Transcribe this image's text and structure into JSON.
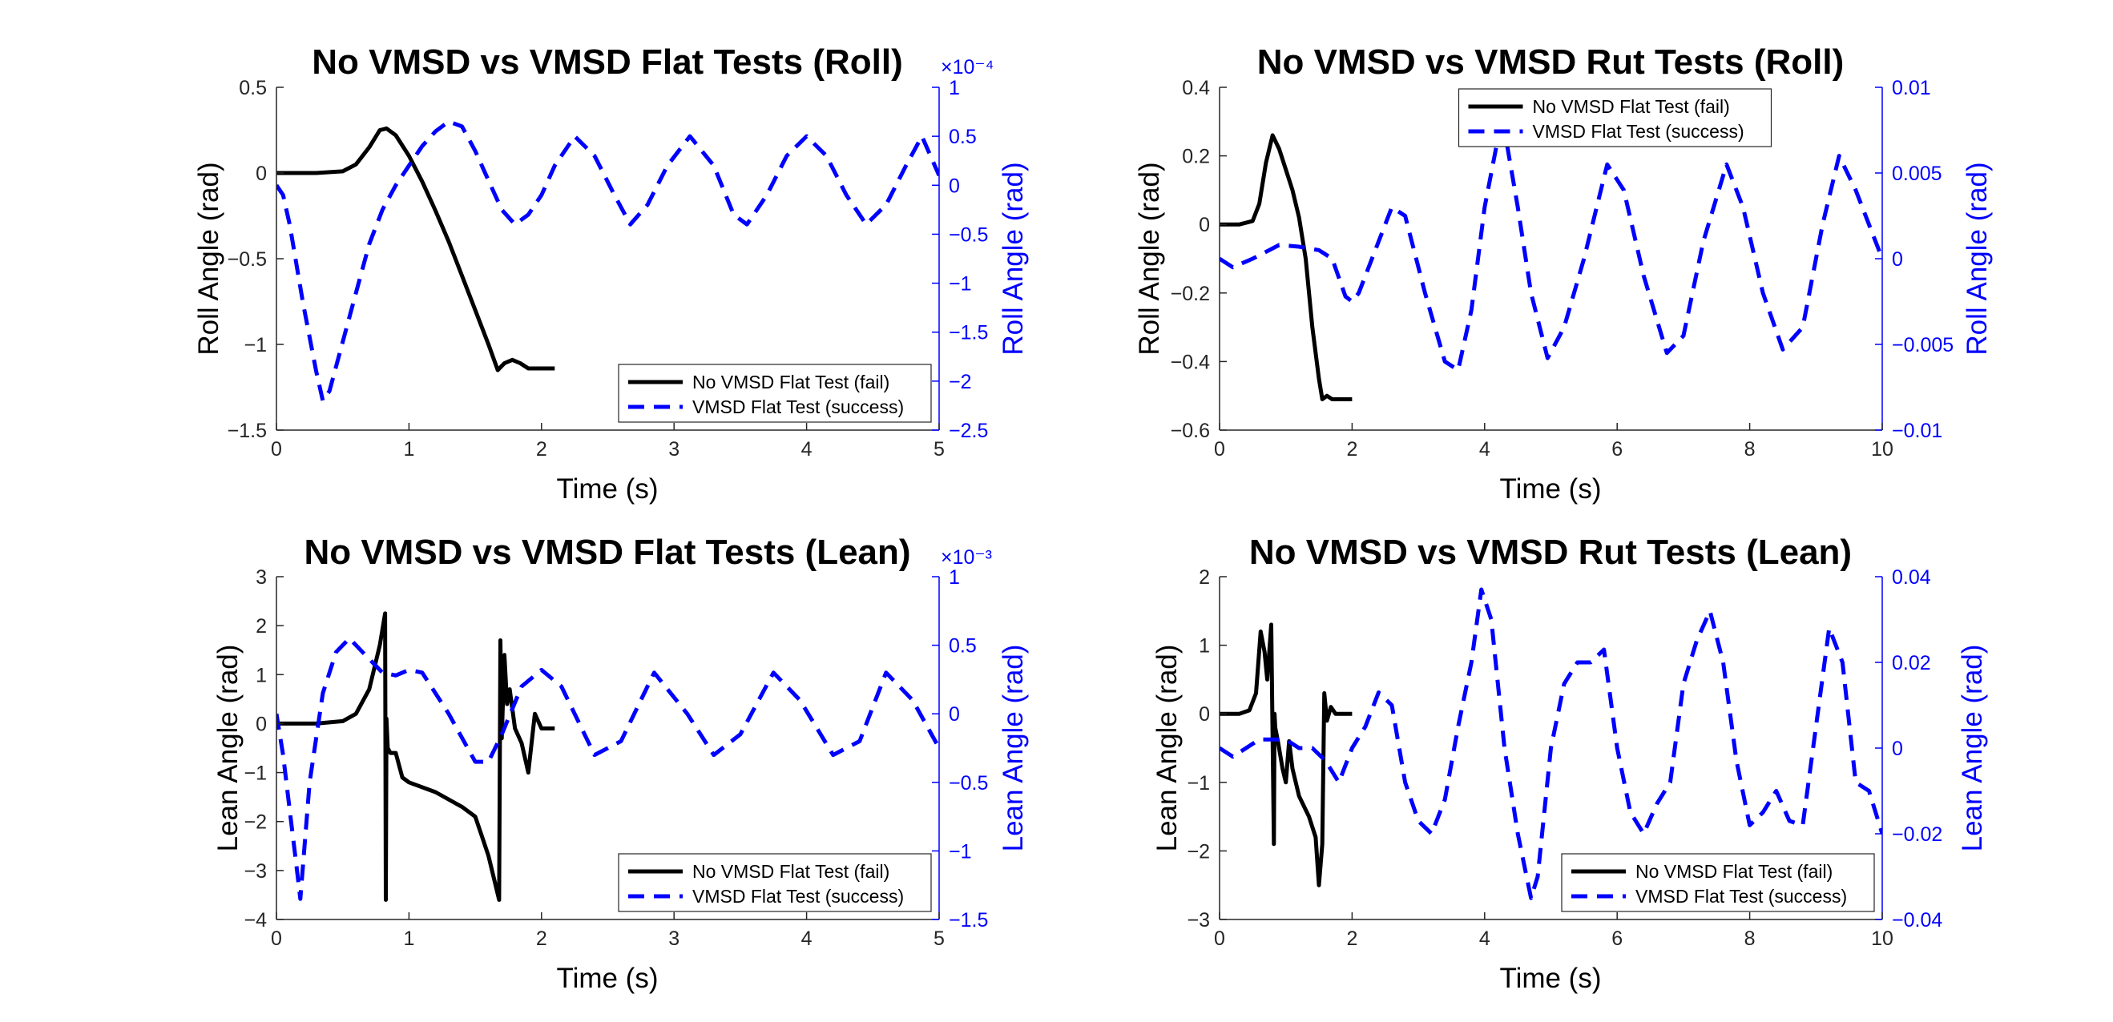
{
  "colors": {
    "left_axis": "#000000",
    "right_axis": "#0000ff",
    "series_fail": "#000000",
    "series_success": "#0000ff"
  },
  "chart_data": [
    {
      "type": "line",
      "title": "No VMSD vs VMSD Flat Tests (Roll)",
      "xlabel": "Time (s)",
      "ylabel_left": "Roll Angle (rad)",
      "ylabel_right": "Roll Angle (rad)",
      "xlim": [
        0,
        5
      ],
      "ylim_left": [
        -1.5,
        0.5
      ],
      "ylim_right": [
        -2.5,
        1
      ],
      "right_exponent": "×10⁻⁴",
      "xticks": [
        0,
        1,
        2,
        3,
        4,
        5
      ],
      "yticks_left": [
        -1.5,
        -1,
        -0.5,
        0,
        0.5
      ],
      "yticks_right": [
        -2.5,
        -2,
        -1.5,
        -1,
        -0.5,
        0,
        0.5,
        1
      ],
      "legend_location": "bottom-right",
      "grid": false,
      "series": [
        {
          "name": "No VMSD Flat Test (fail)",
          "axis": "left",
          "style": "solid",
          "x": [
            0,
            0.3,
            0.5,
            0.6,
            0.7,
            0.78,
            0.83,
            0.9,
            1.0,
            1.1,
            1.2,
            1.3,
            1.4,
            1.5,
            1.6,
            1.67,
            1.72,
            1.78,
            1.84,
            1.9,
            2.0,
            2.1
          ],
          "y": [
            0,
            0,
            0.01,
            0.05,
            0.15,
            0.25,
            0.26,
            0.22,
            0.1,
            -0.05,
            -0.22,
            -0.4,
            -0.6,
            -0.8,
            -1.0,
            -1.15,
            -1.11,
            -1.09,
            -1.11,
            -1.14,
            -1.14,
            -1.14
          ]
        },
        {
          "name": "VMSD Flat Test (success)",
          "axis": "right",
          "style": "dashed",
          "x": [
            0,
            0.05,
            0.1,
            0.2,
            0.3,
            0.35,
            0.4,
            0.5,
            0.6,
            0.7,
            0.8,
            0.9,
            1.0,
            1.1,
            1.2,
            1.3,
            1.4,
            1.5,
            1.6,
            1.7,
            1.8,
            1.9,
            2.0,
            2.1,
            2.25,
            2.4,
            2.55,
            2.67,
            2.8,
            2.95,
            3.12,
            3.3,
            3.45,
            3.55,
            3.7,
            3.85,
            4.0,
            4.15,
            4.3,
            4.45,
            4.6,
            4.75,
            4.87,
            5.0
          ],
          "y": [
            0,
            -0.1,
            -0.4,
            -1.2,
            -1.9,
            -2.2,
            -2.1,
            -1.6,
            -1.1,
            -0.6,
            -0.25,
            0,
            0.2,
            0.4,
            0.55,
            0.65,
            0.6,
            0.35,
            0.05,
            -0.25,
            -0.4,
            -0.3,
            -0.1,
            0.2,
            0.5,
            0.3,
            -0.1,
            -0.4,
            -0.2,
            0.2,
            0.5,
            0.2,
            -0.3,
            -0.4,
            -0.1,
            0.3,
            0.5,
            0.3,
            -0.1,
            -0.4,
            -0.2,
            0.2,
            0.5,
            0.1
          ]
        }
      ]
    },
    {
      "type": "line",
      "title": "No VMSD vs VMSD Rut Tests (Roll)",
      "xlabel": "Time (s)",
      "ylabel_left": "Roll Angle (rad)",
      "ylabel_right": "Roll Angle (rad)",
      "xlim": [
        0,
        10
      ],
      "ylim_left": [
        -0.6,
        0.4
      ],
      "ylim_right": [
        -0.01,
        0.01
      ],
      "right_exponent": "",
      "xticks": [
        0,
        2,
        4,
        6,
        8,
        10
      ],
      "yticks_left": [
        -0.6,
        -0.4,
        -0.2,
        0,
        0.2,
        0.4
      ],
      "yticks_right": [
        -0.01,
        -0.005,
        0,
        0.005,
        0.01
      ],
      "legend_location": "top-center",
      "grid": false,
      "series": [
        {
          "name": "No VMSD Flat Test (fail)",
          "axis": "left",
          "style": "solid",
          "x": [
            0,
            0.3,
            0.5,
            0.6,
            0.7,
            0.8,
            0.9,
            1.0,
            1.1,
            1.2,
            1.3,
            1.4,
            1.5,
            1.55,
            1.62,
            1.7,
            1.8,
            2.0
          ],
          "y": [
            0,
            0,
            0.01,
            0.06,
            0.18,
            0.26,
            0.22,
            0.16,
            0.1,
            0.02,
            -0.1,
            -0.3,
            -0.45,
            -0.51,
            -0.5,
            -0.51,
            -0.51,
            -0.51
          ]
        },
        {
          "name": "VMSD Flat Test (success)",
          "axis": "right",
          "style": "dashed",
          "x": [
            0,
            0.2,
            0.5,
            0.9,
            1.2,
            1.5,
            1.7,
            1.9,
            2.0,
            2.1,
            2.3,
            2.6,
            2.8,
            3.1,
            3.4,
            3.6,
            3.8,
            4.0,
            4.2,
            4.3,
            4.5,
            4.7,
            4.95,
            5.2,
            5.5,
            5.85,
            6.1,
            6.4,
            6.75,
            7.0,
            7.3,
            7.65,
            7.9,
            8.2,
            8.5,
            8.8,
            9.1,
            9.35,
            9.6,
            10.0
          ],
          "y": [
            0,
            -0.0005,
            0,
            0.0008,
            0.0007,
            0.0005,
            0,
            -0.0022,
            -0.0025,
            -0.002,
            0,
            0.003,
            0.0025,
            -0.002,
            -0.006,
            -0.0065,
            -0.003,
            0.003,
            0.007,
            0.0075,
            0.003,
            -0.002,
            -0.0058,
            -0.004,
            0,
            0.0055,
            0.004,
            -0.001,
            -0.0055,
            -0.0045,
            0.001,
            0.0055,
            0.003,
            -0.002,
            -0.0053,
            -0.004,
            0.002,
            0.006,
            0.004,
            0
          ]
        }
      ]
    },
    {
      "type": "line",
      "title": "No VMSD vs VMSD Flat Tests (Lean)",
      "xlabel": "Time (s)",
      "ylabel_left": "Lean Angle (rad)",
      "ylabel_right": "Lean Angle (rad)",
      "xlim": [
        0,
        5
      ],
      "ylim_left": [
        -4,
        3
      ],
      "ylim_right": [
        -1.5,
        1
      ],
      "right_exponent": "×10⁻³",
      "xticks": [
        0,
        1,
        2,
        3,
        4,
        5
      ],
      "yticks_left": [
        -4,
        -3,
        -2,
        -1,
        0,
        1,
        2,
        3
      ],
      "yticks_right": [
        -1.5,
        -1,
        -0.5,
        0,
        0.5,
        1
      ],
      "legend_location": "bottom-right",
      "grid": false,
      "series": [
        {
          "name": "No VMSD Flat Test (fail)",
          "axis": "left",
          "style": "solid",
          "x": [
            0,
            0.3,
            0.5,
            0.6,
            0.7,
            0.78,
            0.82,
            0.825,
            0.83,
            0.84,
            0.86,
            0.9,
            0.95,
            1.0,
            1.2,
            1.4,
            1.5,
            1.55,
            1.6,
            1.68,
            1.69,
            1.7,
            1.72,
            1.74,
            1.76,
            1.8,
            1.85,
            1.9,
            1.95,
            2.0,
            2.1
          ],
          "y": [
            0,
            0,
            0.05,
            0.2,
            0.7,
            1.6,
            2.25,
            -3.6,
            0.1,
            -0.5,
            -0.6,
            -0.6,
            -1.1,
            -1.2,
            -1.4,
            -1.7,
            -1.9,
            -2.3,
            -2.7,
            -3.6,
            1.7,
            -0.3,
            1.4,
            0.4,
            0.7,
            -0.1,
            -0.4,
            -1.0,
            0.2,
            -0.1,
            -0.1
          ]
        },
        {
          "name": "VMSD Flat Test (success)",
          "axis": "right",
          "style": "dashed",
          "x": [
            0,
            0.05,
            0.1,
            0.15,
            0.18,
            0.25,
            0.35,
            0.45,
            0.55,
            0.65,
            0.8,
            0.9,
            1.0,
            1.1,
            1.3,
            1.5,
            1.6,
            1.7,
            1.85,
            2.0,
            2.15,
            2.4,
            2.6,
            2.85,
            3.1,
            3.3,
            3.5,
            3.75,
            3.95,
            4.2,
            4.4,
            4.6,
            4.8,
            5.0
          ],
          "y": [
            0,
            -0.3,
            -0.7,
            -1.1,
            -1.35,
            -0.5,
            0.15,
            0.45,
            0.55,
            0.45,
            0.3,
            0.28,
            0.32,
            0.3,
            0,
            -0.35,
            -0.35,
            -0.15,
            0.2,
            0.32,
            0.2,
            -0.3,
            -0.2,
            0.3,
            0,
            -0.3,
            -0.15,
            0.3,
            0.1,
            -0.3,
            -0.2,
            0.3,
            0.1,
            -0.25
          ]
        }
      ]
    },
    {
      "type": "line",
      "title": "No VMSD vs VMSD Rut Tests (Lean)",
      "xlabel": "Time (s)",
      "ylabel_left": "Lean Angle (rad)",
      "ylabel_right": "Lean Angle (rad)",
      "xlim": [
        0,
        10
      ],
      "ylim_left": [
        -3,
        2
      ],
      "ylim_right": [
        -0.04,
        0.04
      ],
      "right_exponent": "",
      "xticks": [
        0,
        2,
        4,
        6,
        8,
        10
      ],
      "yticks_left": [
        -3,
        -2,
        -1,
        0,
        1,
        2
      ],
      "yticks_right": [
        -0.04,
        -0.02,
        0,
        0.02,
        0.04
      ],
      "legend_location": "bottom-right",
      "grid": false,
      "series": [
        {
          "name": "No VMSD Flat Test (fail)",
          "axis": "left",
          "style": "solid",
          "x": [
            0,
            0.3,
            0.45,
            0.55,
            0.62,
            0.68,
            0.72,
            0.78,
            0.82,
            0.83,
            0.84,
            0.88,
            0.95,
            1.0,
            1.05,
            1.1,
            1.2,
            1.35,
            1.45,
            1.5,
            1.55,
            1.58,
            1.62,
            1.68,
            1.75,
            1.85,
            2.0
          ],
          "y": [
            0,
            0,
            0.05,
            0.3,
            1.2,
            0.9,
            0.5,
            1.3,
            -1.9,
            0.0,
            -0.2,
            -0.4,
            -0.8,
            -1.0,
            -0.4,
            -0.8,
            -1.2,
            -1.5,
            -1.8,
            -2.5,
            -1.9,
            0.3,
            -0.1,
            0.1,
            0,
            0,
            0
          ]
        },
        {
          "name": "VMSD Flat Test (success)",
          "axis": "right",
          "style": "dashed",
          "x": [
            0,
            0.2,
            0.4,
            0.6,
            0.8,
            1.0,
            1.2,
            1.4,
            1.6,
            1.8,
            2.0,
            2.2,
            2.4,
            2.6,
            2.8,
            3.0,
            3.2,
            3.4,
            3.6,
            3.8,
            3.95,
            4.1,
            4.3,
            4.5,
            4.7,
            4.8,
            5.0,
            5.2,
            5.4,
            5.6,
            5.8,
            6.0,
            6.2,
            6.4,
            6.6,
            6.8,
            7.0,
            7.2,
            7.4,
            7.6,
            7.8,
            8.0,
            8.2,
            8.4,
            8.6,
            8.8,
            9.0,
            9.2,
            9.4,
            9.6,
            9.8,
            10.0
          ],
          "y": [
            0,
            -0.002,
            0,
            0.002,
            0.002,
            0.002,
            0,
            0,
            -0.003,
            -0.008,
            0,
            0.005,
            0.013,
            0.01,
            -0.008,
            -0.017,
            -0.02,
            -0.012,
            0.005,
            0.02,
            0.037,
            0.03,
            0,
            -0.02,
            -0.035,
            -0.03,
            0,
            0.015,
            0.02,
            0.02,
            0.023,
            0,
            -0.015,
            -0.02,
            -0.013,
            -0.008,
            0.015,
            0.025,
            0.032,
            0.02,
            -0.003,
            -0.018,
            -0.015,
            -0.01,
            -0.017,
            -0.018,
            0.005,
            0.028,
            0.02,
            -0.008,
            -0.01,
            -0.02
          ]
        }
      ]
    }
  ]
}
